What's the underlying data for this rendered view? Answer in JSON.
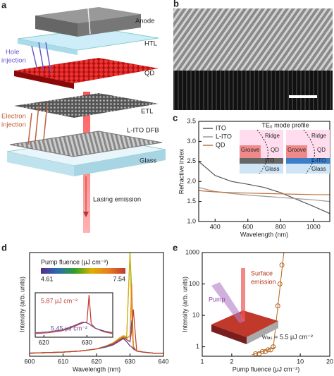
{
  "panel_labels": [
    "a",
    "b",
    "c",
    "d",
    "e"
  ],
  "diagram": {
    "layers": [
      "Anode",
      "HTL",
      "QD",
      "ETL",
      "L-ITO DFB",
      "Glass"
    ],
    "hole_injection": [
      "Hole",
      "injection"
    ],
    "electron_injection": [
      "Electron",
      "injection"
    ],
    "emission": "Lasing emission"
  },
  "chart_data": [
    {
      "type": "line",
      "xlabel": "Wavelength (nm)",
      "ylabel": "Refractive index",
      "x": [
        300,
        400,
        500,
        600,
        700,
        800,
        900,
        1000,
        1100
      ],
      "series": [
        {
          "name": "ITO",
          "color": "#555555",
          "values": [
            2.5,
            2.15,
            2.0,
            1.93,
            1.85,
            1.72,
            1.55,
            1.38,
            1.2
          ]
        },
        {
          "name": "L-ITO",
          "color": "#9a9a9a",
          "values": [
            1.85,
            1.75,
            1.7,
            1.66,
            1.63,
            1.6,
            1.57,
            1.54,
            1.5
          ]
        },
        {
          "name": "QD",
          "color": "#c0703a",
          "values": [
            1.77,
            1.74,
            1.72,
            1.71,
            1.7,
            1.69,
            1.68,
            1.67,
            1.67
          ]
        }
      ],
      "xlim": [
        300,
        1100
      ],
      "xticks": [
        400,
        600,
        800,
        1000
      ],
      "ylim": [
        1,
        3.5
      ],
      "yticks": [
        {
          "value": 1,
          "label": "1.0"
        },
        {
          "value": 1.5,
          "label": "1.5"
        },
        {
          "value": 2,
          "label": "2.0"
        },
        {
          "value": 2.5,
          "label": "2.5"
        },
        {
          "value": 3,
          "label": "3.0"
        },
        {
          "value": 3.5,
          "label": "3.5"
        }
      ],
      "legend": "upper left",
      "inset_profile": {
        "title": "TE₀ mode profile",
        "labels": [
          "Ridge",
          "QD",
          "Groove",
          "ITO",
          "Glass",
          "Ridge",
          "QD",
          "Groove",
          "L-ITO",
          "Glass"
        ]
      }
    },
    {
      "type": "line",
      "xlabel": "Wavelength (nm)",
      "ylabel": "Intensity (arb. units)",
      "x": [
        600,
        605,
        610,
        615,
        620,
        623,
        625,
        627,
        628,
        629,
        630,
        630.5,
        631,
        632,
        634,
        637,
        640
      ],
      "series": [
        {
          "color": "#5b2a86",
          "values": [
            3,
            3.5,
            4,
            5,
            7,
            9,
            11,
            15,
            17,
            14,
            10,
            9,
            7,
            5,
            4,
            3,
            3
          ]
        },
        {
          "color": "#2b6cb0",
          "values": [
            3,
            3.5,
            4,
            5,
            7,
            9,
            12,
            16,
            18,
            16,
            14,
            35,
            8,
            5,
            4,
            3,
            3
          ]
        },
        {
          "color": "#2ca02c",
          "values": [
            3,
            3.5,
            4,
            5,
            7,
            10,
            13,
            17,
            19,
            18,
            100,
            60,
            9,
            5,
            4,
            3,
            3
          ]
        },
        {
          "color": "#e0b000",
          "values": [
            3,
            3.5,
            4,
            5,
            7,
            10,
            13,
            18,
            20,
            19,
            100,
            40,
            10,
            5,
            4,
            3,
            3
          ]
        },
        {
          "color": "#e67e22",
          "values": [
            3,
            3.5,
            4,
            5,
            7,
            10,
            13,
            17,
            19,
            17,
            20,
            70,
            9,
            5,
            4,
            3,
            3
          ]
        },
        {
          "color": "#c0392b",
          "values": [
            3,
            3.5,
            4,
            5,
            7,
            10,
            12,
            16,
            18,
            16,
            14,
            25,
            45,
            5,
            4,
            3,
            3
          ]
        }
      ],
      "xlim": [
        600,
        640
      ],
      "xticks": [
        600,
        610,
        620,
        630,
        640
      ],
      "ylim": [
        0,
        100
      ],
      "colorbar": {
        "title": "Pump fluence (μJ cm⁻²)",
        "range": [
          4.61,
          7.54
        ]
      },
      "inset": {
        "x": [
          618,
          621,
          624,
          626,
          628,
          629,
          630,
          630.5,
          631,
          632,
          634,
          636
        ],
        "xlim": [
          618,
          636
        ],
        "ylim": [
          0,
          100
        ],
        "xticks": [
          620,
          630
        ],
        "series": [
          {
            "name": "5.87 μJ cm⁻²",
            "color": "#c0392b",
            "values": [
              8,
              10,
              14,
              20,
              28,
              32,
              34,
              95,
              30,
              20,
              12,
              8
            ]
          },
          {
            "name": "5.45 μJ cm⁻²",
            "color": "#6a4c93",
            "values": [
              10,
              12,
              16,
              22,
              30,
              34,
              32,
              30,
              26,
              20,
              14,
              10
            ]
          }
        ]
      }
    },
    {
      "type": "scatter",
      "xlabel": "Pump fluence (μJ cm⁻²)",
      "ylabel": "Intensity (arb. units)",
      "x": [
        3.5,
        3.8,
        4.1,
        4.4,
        4.7,
        5.0,
        5.3,
        5.6,
        5.9,
        6.2,
        6.5
      ],
      "values": [
        0.6,
        0.6,
        0.7,
        0.7,
        0.8,
        0.8,
        1.0,
        5,
        20,
        100,
        400
      ],
      "color": "#b5651d",
      "xlog": true,
      "ylog": true,
      "xlim": [
        1,
        20
      ],
      "xticks": [
        1,
        2,
        10,
        20
      ],
      "ylim": [
        0.5,
        1000
      ],
      "yticks": [
        1,
        10,
        100,
        1000
      ],
      "fit_lines": [
        {
          "x": [
            3.2,
            5.5
          ],
          "y": [
            0.55,
            0.95
          ]
        },
        {
          "x": [
            5.3,
            6.8
          ],
          "y": [
            0.9,
            1000
          ]
        }
      ],
      "annotations": {
        "emission": [
          "Surface",
          "emission"
        ],
        "pump": "Pump",
        "threshold": "wₗₐₛ = 5.5 μJ cm⁻²"
      }
    }
  ]
}
